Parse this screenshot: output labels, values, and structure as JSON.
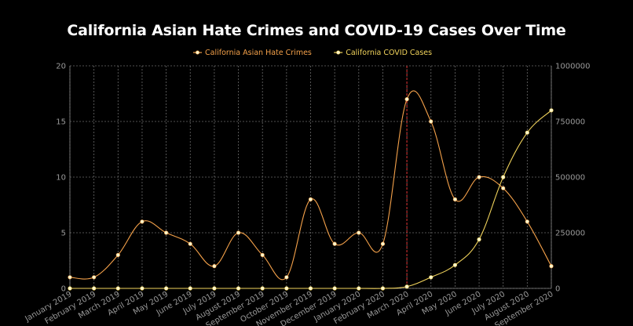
{
  "chart_data": {
    "type": "line",
    "title": "California Asian Hate Crimes and COVID-19 Cases Over Time",
    "categories": [
      "January 2019",
      "February 2019",
      "March 2019",
      "April 2019",
      "May 2019",
      "June 2019",
      "July 2019",
      "August 2019",
      "September 2019",
      "October 2019",
      "November 2019",
      "December 2019",
      "January 2020",
      "February 2020",
      "March 2020",
      "April 2020",
      "May 2020",
      "June 2020",
      "July 2020",
      "August 2020",
      "September 2020"
    ],
    "series": [
      {
        "name": "California Asian Hate Crimes",
        "axis": "left",
        "color": "#f4a14a",
        "values": [
          1,
          1,
          3,
          6,
          5,
          4,
          2,
          5,
          3,
          1,
          8,
          4,
          5,
          4,
          17,
          15,
          8,
          10,
          9,
          6,
          2
        ]
      },
      {
        "name": "California COVID Cases",
        "axis": "right",
        "color": "#f2d45c",
        "values": [
          0,
          0,
          0,
          0,
          0,
          0,
          0,
          0,
          0,
          0,
          0,
          0,
          0,
          0,
          8000,
          50000,
          105000,
          220000,
          500000,
          700000,
          800000
        ]
      }
    ],
    "y_left": {
      "min": 0,
      "max": 20,
      "ticks": [
        "0",
        "5",
        "10",
        "15",
        "20"
      ]
    },
    "y_right": {
      "min": 0,
      "max": 1000000,
      "ticks": [
        "0",
        "250000",
        "500000",
        "750000",
        "1000000"
      ]
    },
    "reference_line_category": "March 2020",
    "reference_line_color": "#e03131",
    "grid": true,
    "legend_position": "top-center",
    "background": "#000000",
    "point_color": "#fff6cc"
  }
}
